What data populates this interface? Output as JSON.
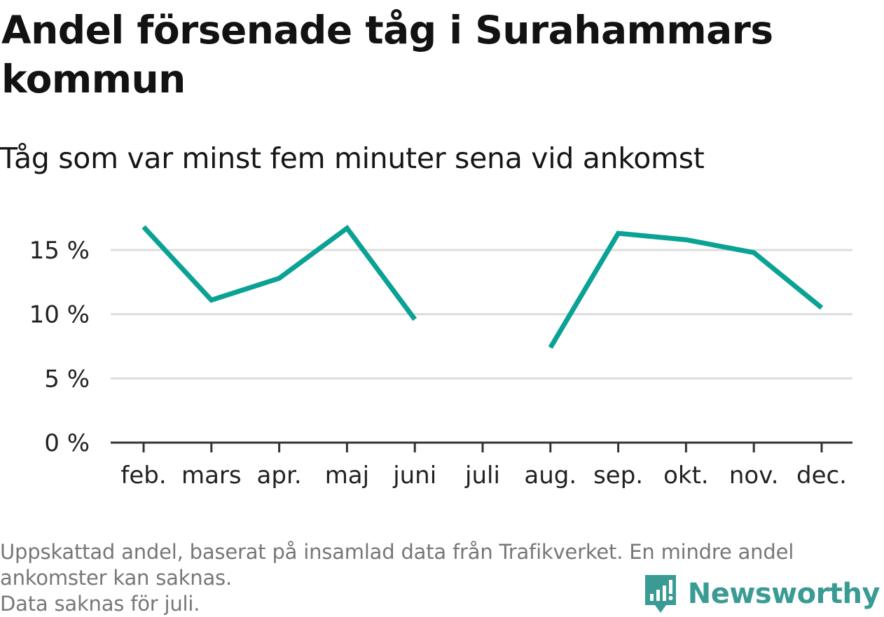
{
  "header": {
    "title": "Andel försenade tåg i Surahammars kommun",
    "subtitle": "Tåg som var minst fem minuter sena vid ankomst"
  },
  "colors": {
    "line": "#0aa295",
    "grid": "#dddddd",
    "axis": "#333333",
    "brand": "#3a9b94"
  },
  "chart_data": {
    "type": "line",
    "categories": [
      "feb.",
      "mars",
      "apr.",
      "maj",
      "juni",
      "juli",
      "aug.",
      "sep.",
      "okt.",
      "nov.",
      "dec."
    ],
    "series": [
      {
        "values": [
          16.8,
          11.1,
          12.8,
          16.7,
          9.6,
          null,
          7.4,
          16.3,
          15.8,
          14.8,
          10.5
        ]
      }
    ],
    "ylim": [
      0,
      17.5
    ],
    "yticks": [
      0,
      5,
      10,
      15
    ],
    "ytick_labels": [
      "0 %",
      "5 %",
      "10 %",
      "15 %"
    ],
    "grid": true
  },
  "footer": {
    "note_line1": "Uppskattad andel, baserat på insamlad data från Trafikverket. En mindre andel",
    "note_line2": "ankomster kan saknas.",
    "note_line3": "Data saknas för juli.",
    "brand": "Newsworthy",
    "brand_icon": "newsworthy-logo-icon"
  }
}
